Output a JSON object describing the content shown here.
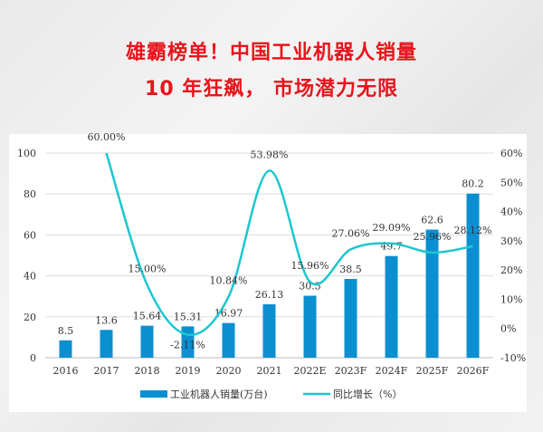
{
  "header": {
    "line1": "雄霸榜单！中国工业机器人销量",
    "line2": "10 年狂飙，  市场潜力无限"
  },
  "chart_data": {
    "type": "bar+line",
    "categories": [
      "2016",
      "2017",
      "2018",
      "2019",
      "2020",
      "2021",
      "2022E",
      "2023F",
      "2024F",
      "2025F",
      "2026F"
    ],
    "series": [
      {
        "name": "工业机器人销量(万台)",
        "type": "bar",
        "axis": "left",
        "color": "#0a8fd1",
        "values": [
          8.5,
          13.6,
          15.64,
          15.31,
          16.97,
          26.13,
          30.3,
          38.5,
          49.7,
          62.6,
          80.2
        ],
        "labels": [
          "8.5",
          "13.6",
          "15.64",
          "15.31",
          "16.97",
          "26.13",
          "30.3",
          "38.5",
          "49.7",
          "62.6",
          "80.2"
        ]
      },
      {
        "name": "同比增长（%）",
        "type": "line",
        "axis": "right",
        "color": "#1cc7d0",
        "smooth": true,
        "values": [
          null,
          60.0,
          15.0,
          -2.11,
          10.84,
          53.98,
          15.96,
          27.06,
          29.09,
          25.96,
          28.12
        ],
        "labels": [
          "",
          "60.00%",
          "15.00%",
          "-2.11%",
          "10.84%",
          "53.98%",
          "15.96%",
          "27.06%",
          "29.09%",
          "25.96%",
          "28.12%"
        ]
      }
    ],
    "y_left": {
      "range": [
        0,
        100
      ],
      "ticks": [
        "0",
        "20",
        "40",
        "60",
        "80",
        "100"
      ]
    },
    "y_right": {
      "range": [
        -10,
        60
      ],
      "ticks": [
        "-10%",
        "0%",
        "10%",
        "20%",
        "30%",
        "40%",
        "50%",
        "60%"
      ]
    },
    "grid": true,
    "legend": "bottom"
  }
}
